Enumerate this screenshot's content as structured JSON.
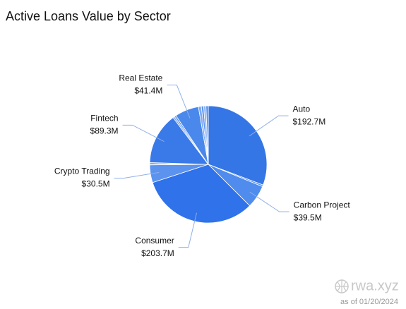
{
  "chart_data": {
    "type": "pie",
    "title": "Active Loans Value by Sector",
    "categories": [
      "Auto",
      null,
      "Carbon Project",
      "Consumer",
      "Crypto Trading",
      null,
      null,
      "Fintech",
      null,
      null,
      "Real Estate",
      null,
      null,
      null,
      null
    ],
    "values": [
      192.7,
      3,
      39.5,
      203.7,
      30.5,
      2,
      2,
      89.3,
      3,
      3,
      41.4,
      5,
      4,
      4,
      4
    ],
    "value_labels": [
      "$192.7M",
      null,
      "$39.5M",
      "$203.7M",
      "$30.5M",
      null,
      null,
      "$89.3M",
      null,
      null,
      "$41.4M",
      null,
      null,
      null,
      null
    ],
    "colors": [
      "#3576e6",
      "#5b93ef",
      "#4f8cee",
      "#2f72ea",
      "#5b93ef",
      "#7eaaf3",
      "#4f8cee",
      "#3a7ae8",
      "#7eaaf3",
      "#5b93ef",
      "#4a88ec",
      "#7eaaf3",
      "#5b93ef",
      "#8ab3f4",
      "#4f8cee"
    ],
    "source": "rwa.xyz",
    "note": "as of 01/20/2024"
  }
}
